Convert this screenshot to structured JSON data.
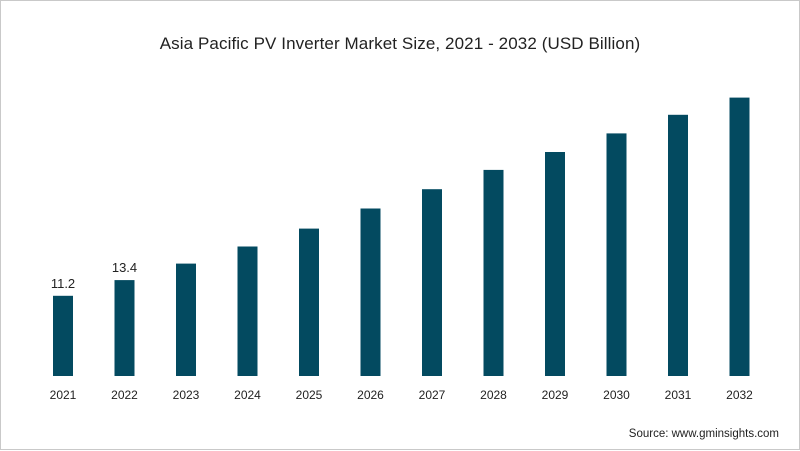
{
  "title": "Asia Pacific PV Inverter Market Size, 2021 - 2032 (USD Billion)",
  "source": "Source: www.gminsights.com",
  "colors": {
    "bar": "#034a60",
    "text": "#222222",
    "background": "#ffffff"
  },
  "chart_data": {
    "type": "bar",
    "title": "Asia Pacific PV Inverter Market Size, 2021 - 2032 (USD Billion)",
    "xlabel": "",
    "ylabel": "",
    "categories": [
      "2021",
      "2022",
      "2023",
      "2024",
      "2025",
      "2026",
      "2027",
      "2028",
      "2029",
      "2030",
      "2031",
      "2032"
    ],
    "values": [
      11.2,
      13.4,
      15.7,
      18.1,
      20.6,
      23.4,
      26.1,
      28.8,
      31.3,
      33.9,
      36.5,
      38.9
    ],
    "data_labels": {
      "2021": "11.2",
      "2022": "13.4"
    },
    "ylim": [
      0,
      41.5
    ],
    "grid": false,
    "legend": "none"
  }
}
